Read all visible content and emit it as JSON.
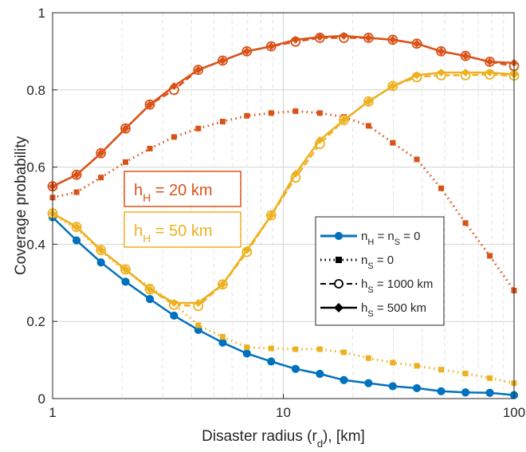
{
  "chart_data": {
    "type": "line",
    "xscale": "log",
    "xlim": [
      1,
      100
    ],
    "ylim": [
      0,
      1
    ],
    "xticks": [
      {
        "v": 1,
        "label": "1"
      },
      {
        "v": 10,
        "label": "10"
      },
      {
        "v": 100,
        "label": "100"
      }
    ],
    "yticks": [
      {
        "v": 0,
        "label": "0"
      },
      {
        "v": 0.2,
        "label": "0.2"
      },
      {
        "v": 0.4,
        "label": "0.4"
      },
      {
        "v": 0.6,
        "label": "0.6"
      },
      {
        "v": 0.8,
        "label": "0.8"
      },
      {
        "v": 1,
        "label": "1"
      }
    ],
    "xlabel": "Disaster radius (r_d), [km]",
    "ylabel": "Coverage probability",
    "grid": true,
    "colors": {
      "blue": "#0072BD",
      "orange": "#D95319",
      "yellow": "#EDB120",
      "grid": "#d9d9d9",
      "axis": "#262626"
    },
    "annotations": [
      {
        "text": "h_H = 20 km",
        "color": "#D95319"
      },
      {
        "text": "h_H = 50 km",
        "color": "#EDB120"
      }
    ],
    "legend": {
      "position": "lower-right",
      "entries": [
        {
          "label": "n_H = n_S = 0",
          "style": "solid",
          "marker": "filled-circle",
          "color": "#0072BD"
        },
        {
          "label": "n_S = 0",
          "style": "dotted",
          "marker": "square",
          "color": "#000000"
        },
        {
          "label": "h_S = 1000 km",
          "style": "dashed",
          "marker": "open-circle",
          "color": "#000000"
        },
        {
          "label": "h_S = 500 km",
          "style": "solid",
          "marker": "diamond",
          "color": "#000000"
        }
      ]
    },
    "x": [
      1,
      1.27,
      1.62,
      2.07,
      2.64,
      3.36,
      4.28,
      5.46,
      6.95,
      8.86,
      11.3,
      14.4,
      18.3,
      23.4,
      29.8,
      37.9,
      48.3,
      61.6,
      78.5,
      100
    ],
    "series": [
      {
        "color": "#0072BD",
        "style": "solid",
        "marker": "filled-circle",
        "values": [
          0.47,
          0.41,
          0.353,
          0.303,
          0.258,
          0.215,
          0.178,
          0.145,
          0.117,
          0.096,
          0.077,
          0.064,
          0.048,
          0.04,
          0.032,
          0.027,
          0.019,
          0.016,
          0.015,
          0.009
        ]
      },
      {
        "color": "#D95319",
        "style": "dotted",
        "marker": "square",
        "values": [
          0.521,
          0.535,
          0.573,
          0.613,
          0.648,
          0.678,
          0.7,
          0.718,
          0.733,
          0.74,
          0.745,
          0.74,
          0.73,
          0.707,
          0.663,
          0.62,
          0.545,
          0.455,
          0.37,
          0.28
        ]
      },
      {
        "color": "#EDB120",
        "style": "dotted",
        "marker": "square",
        "values": [
          0.478,
          0.44,
          0.383,
          0.33,
          0.29,
          0.245,
          0.19,
          0.16,
          0.133,
          0.13,
          0.128,
          0.128,
          0.12,
          0.105,
          0.093,
          0.085,
          0.075,
          0.065,
          0.053,
          0.04
        ]
      },
      {
        "color": "#D95319",
        "style": "dashed",
        "marker": "open-circle",
        "values": [
          0.55,
          0.58,
          0.636,
          0.7,
          0.762,
          0.8,
          0.852,
          0.876,
          0.9,
          0.913,
          0.925,
          0.935,
          0.935,
          0.935,
          0.93,
          0.92,
          0.9,
          0.888,
          0.873,
          0.862
        ]
      },
      {
        "color": "#D95319",
        "style": "solid",
        "marker": "diamond",
        "values": [
          0.55,
          0.58,
          0.636,
          0.7,
          0.762,
          0.81,
          0.852,
          0.876,
          0.9,
          0.913,
          0.93,
          0.937,
          0.94,
          0.935,
          0.93,
          0.92,
          0.9,
          0.888,
          0.873,
          0.87
        ]
      },
      {
        "color": "#EDB120",
        "style": "dashed",
        "marker": "open-circle",
        "values": [
          0.48,
          0.445,
          0.385,
          0.335,
          0.283,
          0.243,
          0.24,
          0.296,
          0.38,
          0.475,
          0.573,
          0.66,
          0.722,
          0.77,
          0.81,
          0.833,
          0.838,
          0.838,
          0.84,
          0.837
        ]
      },
      {
        "color": "#EDB120",
        "style": "solid",
        "marker": "diamond",
        "values": [
          0.48,
          0.445,
          0.385,
          0.335,
          0.283,
          0.248,
          0.248,
          0.296,
          0.385,
          0.475,
          0.583,
          0.67,
          0.722,
          0.77,
          0.81,
          0.838,
          0.845,
          0.845,
          0.845,
          0.84
        ]
      }
    ]
  }
}
